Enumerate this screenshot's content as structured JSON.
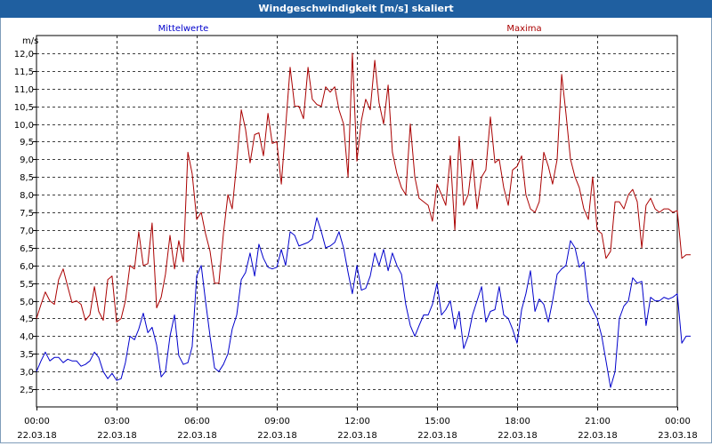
{
  "window": {
    "title": "Windgeschwindigkeit [m/s] skaliert"
  },
  "chart_data": {
    "type": "line",
    "title": "Windgeschwindigkeit [m/s] skaliert",
    "ylabel": "m/s",
    "ylim": [
      2.0,
      12.5
    ],
    "yticks": [
      "12,0",
      "11,5",
      "11,0",
      "10,5",
      "10,0",
      "9,5",
      "9,0",
      "8,5",
      "8,0",
      "7,5",
      "7,0",
      "6,5",
      "6,0",
      "5,5",
      "5,0",
      "4,5",
      "4,0",
      "3,5",
      "3,0",
      "2,5"
    ],
    "yticks_values": [
      12.0,
      11.5,
      11.0,
      10.5,
      10.0,
      9.5,
      9.0,
      8.5,
      8.0,
      7.5,
      7.0,
      6.5,
      6.0,
      5.5,
      5.0,
      4.5,
      4.0,
      3.5,
      3.0,
      2.5
    ],
    "xlim": [
      0,
      24
    ],
    "xticks": [
      {
        "time": "00:00",
        "date": "22.03.18",
        "h": 0
      },
      {
        "time": "03:00",
        "date": "22.03.18",
        "h": 3
      },
      {
        "time": "06:00",
        "date": "22.03.18",
        "h": 6
      },
      {
        "time": "09:00",
        "date": "22.03.18",
        "h": 9
      },
      {
        "time": "12:00",
        "date": "22.03.18",
        "h": 12
      },
      {
        "time": "15:00",
        "date": "22.03.18",
        "h": 15
      },
      {
        "time": "18:00",
        "date": "22.03.18",
        "h": 18
      },
      {
        "time": "21:00",
        "date": "22.03.18",
        "h": 21
      },
      {
        "time": "00:00",
        "date": "23.03.18",
        "h": 24
      }
    ],
    "grid": true,
    "series": [
      {
        "name": "Mittelwerte",
        "color": "#0000cc",
        "points": [
          [
            0.0,
            3.0
          ],
          [
            0.17,
            3.3
          ],
          [
            0.33,
            3.55
          ],
          [
            0.5,
            3.3
          ],
          [
            0.67,
            3.4
          ],
          [
            0.83,
            3.4
          ],
          [
            1.0,
            3.25
          ],
          [
            1.17,
            3.35
          ],
          [
            1.33,
            3.3
          ],
          [
            1.5,
            3.3
          ],
          [
            1.67,
            3.15
          ],
          [
            1.83,
            3.2
          ],
          [
            2.0,
            3.3
          ],
          [
            2.17,
            3.55
          ],
          [
            2.33,
            3.4
          ],
          [
            2.5,
            3.0
          ],
          [
            2.67,
            2.8
          ],
          [
            2.83,
            2.95
          ],
          [
            3.0,
            2.75
          ],
          [
            3.17,
            2.8
          ],
          [
            3.33,
            3.25
          ],
          [
            3.5,
            4.0
          ],
          [
            3.67,
            3.9
          ],
          [
            3.83,
            4.2
          ],
          [
            4.0,
            4.65
          ],
          [
            4.17,
            4.1
          ],
          [
            4.33,
            4.25
          ],
          [
            4.5,
            3.75
          ],
          [
            4.67,
            2.85
          ],
          [
            4.83,
            3.0
          ],
          [
            5.0,
            4.0
          ],
          [
            5.17,
            4.6
          ],
          [
            5.33,
            3.45
          ],
          [
            5.5,
            3.2
          ],
          [
            5.67,
            3.25
          ],
          [
            5.83,
            3.7
          ],
          [
            6.0,
            5.7
          ],
          [
            6.17,
            6.0
          ],
          [
            6.33,
            5.0
          ],
          [
            6.5,
            4.0
          ],
          [
            6.67,
            3.1
          ],
          [
            6.83,
            3.0
          ],
          [
            7.0,
            3.2
          ],
          [
            7.17,
            3.5
          ],
          [
            7.33,
            4.2
          ],
          [
            7.5,
            4.6
          ],
          [
            7.67,
            5.6
          ],
          [
            7.83,
            5.8
          ],
          [
            8.0,
            6.35
          ],
          [
            8.17,
            5.7
          ],
          [
            8.33,
            6.6
          ],
          [
            8.5,
            6.2
          ],
          [
            8.67,
            5.95
          ],
          [
            8.83,
            5.9
          ],
          [
            9.0,
            5.95
          ],
          [
            9.17,
            6.45
          ],
          [
            9.33,
            6.0
          ],
          [
            9.5,
            6.95
          ],
          [
            9.67,
            6.85
          ],
          [
            9.83,
            6.55
          ],
          [
            10.0,
            6.6
          ],
          [
            10.17,
            6.65
          ],
          [
            10.33,
            6.75
          ],
          [
            10.5,
            7.35
          ],
          [
            10.67,
            6.95
          ],
          [
            10.83,
            6.5
          ],
          [
            11.0,
            6.55
          ],
          [
            11.17,
            6.65
          ],
          [
            11.33,
            6.95
          ],
          [
            11.5,
            6.5
          ],
          [
            11.67,
            5.8
          ],
          [
            11.83,
            5.2
          ],
          [
            12.0,
            6.0
          ],
          [
            12.17,
            5.3
          ],
          [
            12.33,
            5.35
          ],
          [
            12.5,
            5.7
          ],
          [
            12.67,
            6.35
          ],
          [
            12.83,
            6.0
          ],
          [
            13.0,
            6.45
          ],
          [
            13.17,
            5.85
          ],
          [
            13.33,
            6.35
          ],
          [
            13.5,
            6.0
          ],
          [
            13.67,
            5.75
          ],
          [
            13.83,
            4.9
          ],
          [
            14.0,
            4.3
          ],
          [
            14.17,
            4.0
          ],
          [
            14.33,
            4.3
          ],
          [
            14.5,
            4.6
          ],
          [
            14.67,
            4.6
          ],
          [
            14.83,
            4.9
          ],
          [
            15.0,
            5.5
          ],
          [
            15.17,
            4.6
          ],
          [
            15.33,
            4.75
          ],
          [
            15.5,
            5.0
          ],
          [
            15.67,
            4.2
          ],
          [
            15.83,
            4.7
          ],
          [
            16.0,
            3.65
          ],
          [
            16.17,
            4.0
          ],
          [
            16.33,
            4.6
          ],
          [
            16.5,
            5.0
          ],
          [
            16.67,
            5.4
          ],
          [
            16.83,
            4.4
          ],
          [
            17.0,
            4.7
          ],
          [
            17.17,
            4.75
          ],
          [
            17.33,
            5.4
          ],
          [
            17.5,
            4.6
          ],
          [
            17.67,
            4.5
          ],
          [
            17.83,
            4.2
          ],
          [
            18.0,
            3.8
          ],
          [
            18.17,
            4.75
          ],
          [
            18.33,
            5.2
          ],
          [
            18.5,
            5.85
          ],
          [
            18.67,
            4.7
          ],
          [
            18.83,
            5.05
          ],
          [
            19.0,
            4.9
          ],
          [
            19.17,
            4.4
          ],
          [
            19.33,
            5.0
          ],
          [
            19.5,
            5.75
          ],
          [
            19.67,
            5.9
          ],
          [
            19.83,
            6.0
          ],
          [
            20.0,
            6.7
          ],
          [
            20.17,
            6.5
          ],
          [
            20.33,
            5.95
          ],
          [
            20.5,
            6.1
          ],
          [
            20.67,
            5.0
          ],
          [
            20.83,
            4.75
          ],
          [
            21.0,
            4.5
          ],
          [
            21.17,
            4.0
          ],
          [
            21.33,
            3.3
          ],
          [
            21.5,
            2.55
          ],
          [
            21.67,
            3.0
          ],
          [
            21.83,
            4.5
          ],
          [
            22.0,
            4.85
          ],
          [
            22.17,
            5.0
          ],
          [
            22.33,
            5.65
          ],
          [
            22.5,
            5.5
          ],
          [
            22.67,
            5.55
          ],
          [
            22.83,
            4.3
          ],
          [
            23.0,
            5.1
          ],
          [
            23.17,
            5.0
          ],
          [
            23.33,
            5.0
          ],
          [
            23.5,
            5.1
          ],
          [
            23.67,
            5.05
          ],
          [
            23.83,
            5.1
          ],
          [
            24.0,
            5.2
          ],
          [
            24.17,
            3.8
          ],
          [
            24.33,
            4.0
          ],
          [
            24.5,
            4.0
          ]
        ]
      },
      {
        "name": "Maxima",
        "color": "#aa0000",
        "points": [
          [
            0.0,
            4.5
          ],
          [
            0.17,
            4.9
          ],
          [
            0.33,
            5.25
          ],
          [
            0.5,
            5.0
          ],
          [
            0.67,
            4.9
          ],
          [
            0.83,
            5.6
          ],
          [
            1.0,
            5.9
          ],
          [
            1.17,
            5.4
          ],
          [
            1.33,
            4.95
          ],
          [
            1.5,
            5.0
          ],
          [
            1.67,
            4.9
          ],
          [
            1.83,
            4.45
          ],
          [
            2.0,
            4.6
          ],
          [
            2.17,
            5.4
          ],
          [
            2.33,
            4.7
          ],
          [
            2.5,
            4.45
          ],
          [
            2.67,
            5.6
          ],
          [
            2.83,
            5.7
          ],
          [
            3.0,
            4.4
          ],
          [
            3.17,
            4.5
          ],
          [
            3.33,
            5.0
          ],
          [
            3.5,
            6.0
          ],
          [
            3.67,
            5.9
          ],
          [
            3.83,
            6.95
          ],
          [
            4.0,
            6.0
          ],
          [
            4.17,
            6.05
          ],
          [
            4.33,
            7.2
          ],
          [
            4.5,
            4.8
          ],
          [
            4.67,
            5.1
          ],
          [
            4.83,
            5.75
          ],
          [
            5.0,
            6.85
          ],
          [
            5.17,
            5.9
          ],
          [
            5.33,
            6.7
          ],
          [
            5.5,
            6.1
          ],
          [
            5.67,
            9.2
          ],
          [
            5.83,
            8.6
          ],
          [
            6.0,
            7.3
          ],
          [
            6.17,
            7.5
          ],
          [
            6.33,
            6.9
          ],
          [
            6.5,
            6.4
          ],
          [
            6.67,
            5.5
          ],
          [
            6.83,
            5.5
          ],
          [
            7.0,
            6.9
          ],
          [
            7.17,
            8.0
          ],
          [
            7.33,
            7.6
          ],
          [
            7.5,
            8.9
          ],
          [
            7.67,
            10.4
          ],
          [
            7.83,
            9.85
          ],
          [
            8.0,
            8.9
          ],
          [
            8.17,
            9.7
          ],
          [
            8.33,
            9.75
          ],
          [
            8.5,
            9.1
          ],
          [
            8.67,
            10.3
          ],
          [
            8.83,
            9.45
          ],
          [
            9.0,
            9.5
          ],
          [
            9.17,
            8.3
          ],
          [
            9.33,
            9.9
          ],
          [
            9.5,
            11.6
          ],
          [
            9.67,
            10.5
          ],
          [
            9.83,
            10.5
          ],
          [
            10.0,
            10.15
          ],
          [
            10.17,
            11.6
          ],
          [
            10.33,
            10.7
          ],
          [
            10.5,
            10.55
          ],
          [
            10.67,
            10.5
          ],
          [
            10.83,
            11.05
          ],
          [
            11.0,
            10.9
          ],
          [
            11.17,
            11.05
          ],
          [
            11.33,
            10.4
          ],
          [
            11.5,
            10.0
          ],
          [
            11.67,
            8.5
          ],
          [
            11.83,
            12.0
          ],
          [
            12.0,
            8.95
          ],
          [
            12.17,
            10.1
          ],
          [
            12.33,
            10.7
          ],
          [
            12.5,
            10.4
          ],
          [
            12.67,
            11.8
          ],
          [
            12.83,
            10.6
          ],
          [
            13.0,
            10.0
          ],
          [
            13.17,
            11.1
          ],
          [
            13.33,
            9.2
          ],
          [
            13.5,
            8.6
          ],
          [
            13.67,
            8.2
          ],
          [
            13.83,
            8.0
          ],
          [
            14.0,
            10.0
          ],
          [
            14.17,
            8.5
          ],
          [
            14.33,
            7.9
          ],
          [
            14.5,
            7.8
          ],
          [
            14.67,
            7.7
          ],
          [
            14.83,
            7.25
          ],
          [
            15.0,
            8.3
          ],
          [
            15.17,
            8.0
          ],
          [
            15.33,
            7.7
          ],
          [
            15.5,
            9.1
          ],
          [
            15.67,
            7.0
          ],
          [
            15.83,
            9.65
          ],
          [
            16.0,
            7.7
          ],
          [
            16.17,
            8.0
          ],
          [
            16.33,
            9.0
          ],
          [
            16.5,
            7.6
          ],
          [
            16.67,
            8.5
          ],
          [
            16.83,
            8.7
          ],
          [
            17.0,
            10.2
          ],
          [
            17.17,
            8.9
          ],
          [
            17.33,
            9.0
          ],
          [
            17.5,
            8.2
          ],
          [
            17.67,
            7.7
          ],
          [
            17.83,
            8.7
          ],
          [
            18.0,
            8.8
          ],
          [
            18.17,
            9.1
          ],
          [
            18.33,
            8.0
          ],
          [
            18.5,
            7.6
          ],
          [
            18.67,
            7.5
          ],
          [
            18.83,
            7.8
          ],
          [
            19.0,
            9.2
          ],
          [
            19.17,
            8.8
          ],
          [
            19.33,
            8.3
          ],
          [
            19.5,
            9.0
          ],
          [
            19.67,
            11.4
          ],
          [
            19.83,
            10.3
          ],
          [
            20.0,
            9.0
          ],
          [
            20.17,
            8.5
          ],
          [
            20.33,
            8.2
          ],
          [
            20.5,
            7.6
          ],
          [
            20.67,
            7.3
          ],
          [
            20.83,
            8.5
          ],
          [
            21.0,
            7.0
          ],
          [
            21.17,
            6.9
          ],
          [
            21.33,
            6.2
          ],
          [
            21.5,
            6.4
          ],
          [
            21.67,
            7.8
          ],
          [
            21.83,
            7.8
          ],
          [
            22.0,
            7.6
          ],
          [
            22.17,
            8.0
          ],
          [
            22.33,
            8.15
          ],
          [
            22.5,
            7.8
          ],
          [
            22.67,
            6.5
          ],
          [
            22.83,
            7.7
          ],
          [
            23.0,
            7.9
          ],
          [
            23.17,
            7.6
          ],
          [
            23.33,
            7.5
          ],
          [
            23.5,
            7.6
          ],
          [
            23.67,
            7.6
          ],
          [
            23.83,
            7.5
          ],
          [
            24.0,
            7.55
          ],
          [
            24.17,
            6.2
          ],
          [
            24.33,
            6.3
          ],
          [
            24.5,
            6.3
          ]
        ]
      }
    ]
  }
}
